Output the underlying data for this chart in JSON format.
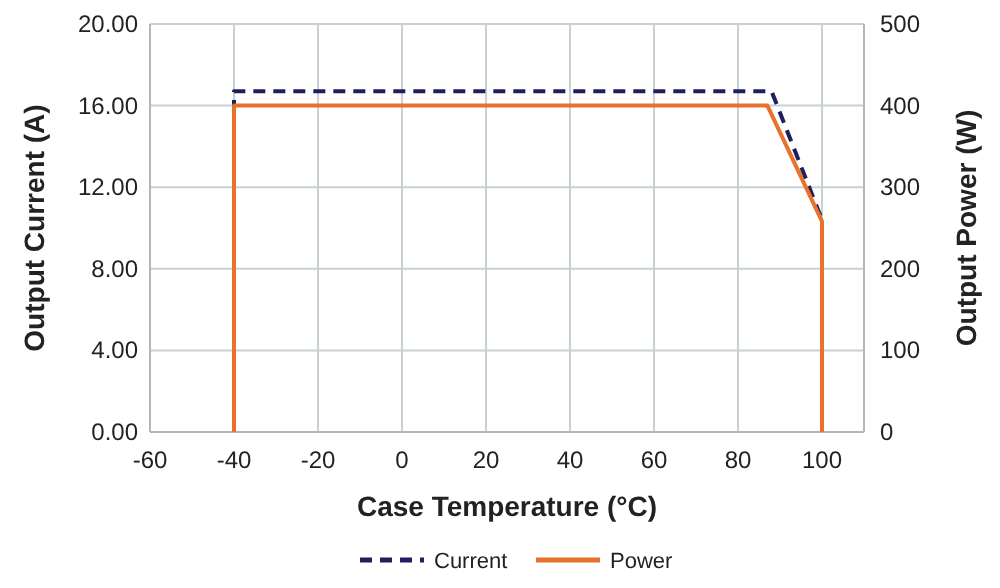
{
  "chart_data": {
    "type": "line",
    "xlabel": "Case Temperature (°C)",
    "ylabel": "Output Current (A)",
    "y2label": "Output Power (W)",
    "xlim": [
      -60,
      110
    ],
    "xticks": [
      -60,
      -40,
      -20,
      0,
      20,
      40,
      60,
      80,
      100
    ],
    "ylim": [
      0,
      20
    ],
    "yticks": [
      {
        "value": 0,
        "label": "0.00"
      },
      {
        "value": 4,
        "label": "4.00"
      },
      {
        "value": 8,
        "label": "8.00"
      },
      {
        "value": 12,
        "label": "12.00"
      },
      {
        "value": 16,
        "label": "16.00"
      },
      {
        "value": 20,
        "label": "20.00"
      }
    ],
    "y2lim": [
      0,
      500
    ],
    "y2ticks": [
      0,
      100,
      200,
      300,
      400,
      500
    ],
    "grid": true,
    "legend": "bottom",
    "series": [
      {
        "name": "Current",
        "color": "#1f1f5e",
        "line_style": "dashed",
        "x": [
          -40,
          -40,
          88,
          100,
          100
        ],
        "values": [
          0,
          16.7,
          16.7,
          10.4,
          0
        ]
      },
      {
        "name": "Power",
        "color": "#e8712b",
        "line_style": "solid",
        "axis": "y2",
        "x": [
          -40,
          -40,
          87,
          100,
          100
        ],
        "values": [
          0,
          400,
          400,
          258,
          0
        ]
      }
    ]
  }
}
